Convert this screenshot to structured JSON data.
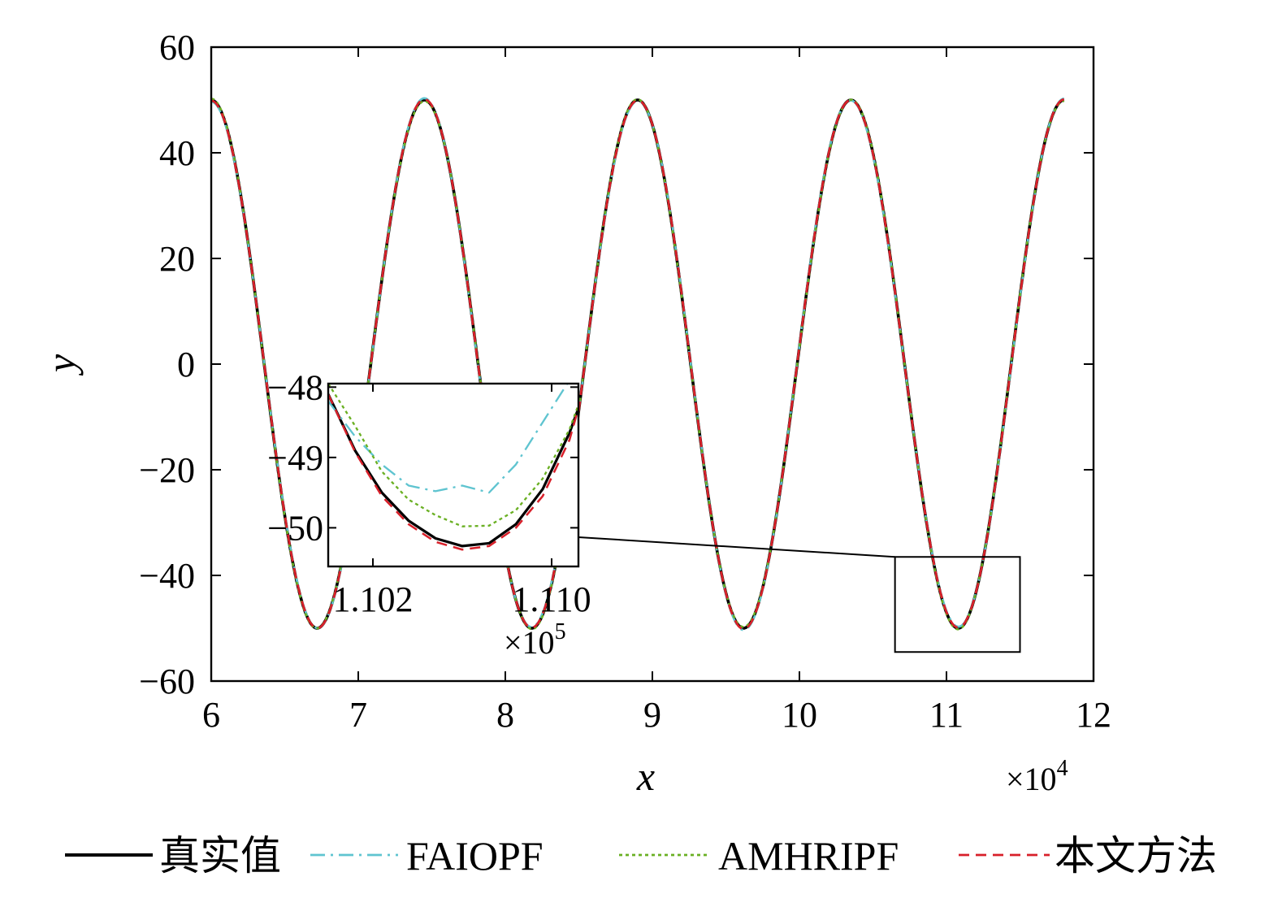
{
  "colors": {
    "truth": "#000000",
    "faiopf": "#5fc4d0",
    "amhripf": "#6ab023",
    "proposed": "#d8202a"
  },
  "chart_data": {
    "type": "line",
    "title": "",
    "xlabel": "x",
    "ylabel": "y",
    "x_multiplier": "×10",
    "x_multiplier_exp": "4",
    "xlim": [
      6,
      12
    ],
    "ylim": [
      -60,
      60
    ],
    "xticks": [
      "6",
      "7",
      "8",
      "9",
      "10",
      "11",
      "12"
    ],
    "yticks": [
      "60",
      "40",
      "20",
      "0",
      "−20",
      "−40",
      "−60"
    ],
    "grid": false,
    "legend_position": "bottom",
    "signal_model": {
      "amplitude": 50,
      "peak_x": [
        6.0,
        7.45,
        8.9,
        10.35,
        11.8
      ],
      "trough_x": [
        6.72,
        8.18,
        9.62,
        11.08
      ]
    },
    "series": [
      {
        "name": "真实值",
        "style": "solid",
        "color": "#000000"
      },
      {
        "name": "FAIOPF",
        "style": "dashdot",
        "color": "#5fc4d0"
      },
      {
        "name": "AMHRIPF",
        "style": "dotted",
        "color": "#6ab023"
      },
      {
        "name": "本文方法",
        "style": "dashed",
        "color": "#d8202a"
      }
    ],
    "zoom_region": {
      "xlim": [
        10.65,
        11.5
      ],
      "ylim": [
        -54.5,
        -36.5
      ]
    },
    "inset": {
      "xlim": [
        1.1,
        1.1112
      ],
      "ylim": [
        -50.55,
        -47.95
      ],
      "x_multiplier": "×10",
      "x_multiplier_exp": "5",
      "xticks": [
        "1.102",
        "1.110"
      ],
      "yticks": [
        "−48",
        "−49",
        "−50"
      ],
      "x": [
        1.1,
        1.1012,
        1.1024,
        1.1036,
        1.1048,
        1.106,
        1.1072,
        1.1084,
        1.1096,
        1.1108,
        1.1112
      ],
      "series": [
        {
          "name": "真实值",
          "values": [
            -48.1,
            -48.9,
            -49.5,
            -49.9,
            -50.15,
            -50.26,
            -50.22,
            -49.95,
            -49.45,
            -48.65,
            -48.3
          ]
        },
        {
          "name": "FAIOPF",
          "values": [
            -48.2,
            -48.7,
            -49.1,
            -49.4,
            -49.48,
            -49.4,
            -49.5,
            -49.1,
            -48.5,
            -47.9,
            -47.7
          ]
        },
        {
          "name": "AMHRIPF",
          "values": [
            -47.95,
            -48.55,
            -49.2,
            -49.6,
            -49.82,
            -49.98,
            -49.97,
            -49.75,
            -49.3,
            -48.6,
            -48.25
          ]
        },
        {
          "name": "本文方法",
          "values": [
            -48.1,
            -48.92,
            -49.55,
            -49.95,
            -50.2,
            -50.31,
            -50.26,
            -50.0,
            -49.55,
            -48.75,
            -48.3
          ]
        }
      ]
    }
  }
}
